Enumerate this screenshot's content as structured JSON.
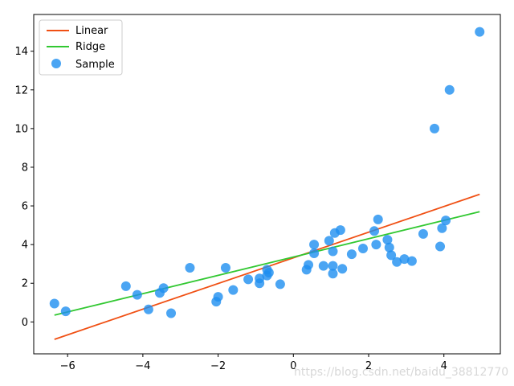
{
  "chart_data": {
    "type": "scatter",
    "title": "",
    "xlabel": "",
    "ylabel": "",
    "xlim": [
      -6.9,
      5.5
    ],
    "ylim": [
      -1.65,
      15.9
    ],
    "xticks": [
      -6,
      -4,
      -2,
      0,
      2,
      4
    ],
    "yticks": [
      0,
      2,
      4,
      6,
      8,
      10,
      12,
      14
    ],
    "xtick_labels": [
      "−6",
      "−4",
      "−2",
      "0",
      "2",
      "4"
    ],
    "ytick_labels": [
      "0",
      "2",
      "4",
      "6",
      "8",
      "10",
      "12",
      "14"
    ],
    "grid": false,
    "legend_position": "top-left",
    "series": [
      {
        "name": "Linear",
        "kind": "line",
        "color": "#f05014",
        "x": [
          -6.35,
          4.95
        ],
        "y": [
          -0.9,
          6.6
        ]
      },
      {
        "name": "Ridge",
        "kind": "line",
        "color": "#32c832",
        "x": [
          -6.35,
          4.95
        ],
        "y": [
          0.35,
          5.7
        ]
      },
      {
        "name": "Sample",
        "kind": "scatter",
        "color": "#1e8ff0",
        "points": [
          [
            -6.35,
            0.95
          ],
          [
            -6.05,
            0.55
          ],
          [
            -4.45,
            1.85
          ],
          [
            -4.15,
            1.4
          ],
          [
            -3.85,
            0.65
          ],
          [
            -3.55,
            1.5
          ],
          [
            -3.45,
            1.75
          ],
          [
            -3.25,
            0.45
          ],
          [
            -2.75,
            2.8
          ],
          [
            -2.05,
            1.05
          ],
          [
            -2.0,
            1.3
          ],
          [
            -1.8,
            2.8
          ],
          [
            -1.6,
            1.65
          ],
          [
            -1.2,
            2.2
          ],
          [
            -0.9,
            2.25
          ],
          [
            -0.9,
            2.0
          ],
          [
            -0.7,
            2.7
          ],
          [
            -0.7,
            2.4
          ],
          [
            -0.65,
            2.55
          ],
          [
            -0.35,
            1.95
          ],
          [
            0.35,
            2.7
          ],
          [
            0.4,
            2.95
          ],
          [
            0.55,
            4.0
          ],
          [
            0.55,
            3.55
          ],
          [
            0.8,
            2.9
          ],
          [
            0.95,
            4.2
          ],
          [
            1.05,
            3.65
          ],
          [
            1.05,
            2.9
          ],
          [
            1.05,
            2.5
          ],
          [
            1.1,
            4.6
          ],
          [
            1.25,
            4.75
          ],
          [
            1.3,
            2.75
          ],
          [
            1.55,
            3.5
          ],
          [
            1.85,
            3.8
          ],
          [
            2.15,
            4.7
          ],
          [
            2.2,
            4.0
          ],
          [
            2.25,
            5.3
          ],
          [
            2.5,
            4.25
          ],
          [
            2.55,
            3.85
          ],
          [
            2.6,
            3.45
          ],
          [
            2.75,
            3.1
          ],
          [
            2.95,
            3.25
          ],
          [
            3.15,
            3.15
          ],
          [
            3.45,
            4.55
          ],
          [
            3.75,
            10.0
          ],
          [
            3.9,
            3.9
          ],
          [
            3.95,
            4.85
          ],
          [
            4.05,
            5.25
          ],
          [
            4.15,
            12.0
          ],
          [
            4.95,
            15.0
          ]
        ]
      }
    ],
    "legend": [
      {
        "label": "Linear",
        "marker": "line",
        "color": "#f05014"
      },
      {
        "label": "Ridge",
        "marker": "line",
        "color": "#32c832"
      },
      {
        "label": "Sample",
        "marker": "dot",
        "color": "#1e8ff0"
      }
    ]
  },
  "watermark": "https://blog.csdn.net/baidu_38812770"
}
